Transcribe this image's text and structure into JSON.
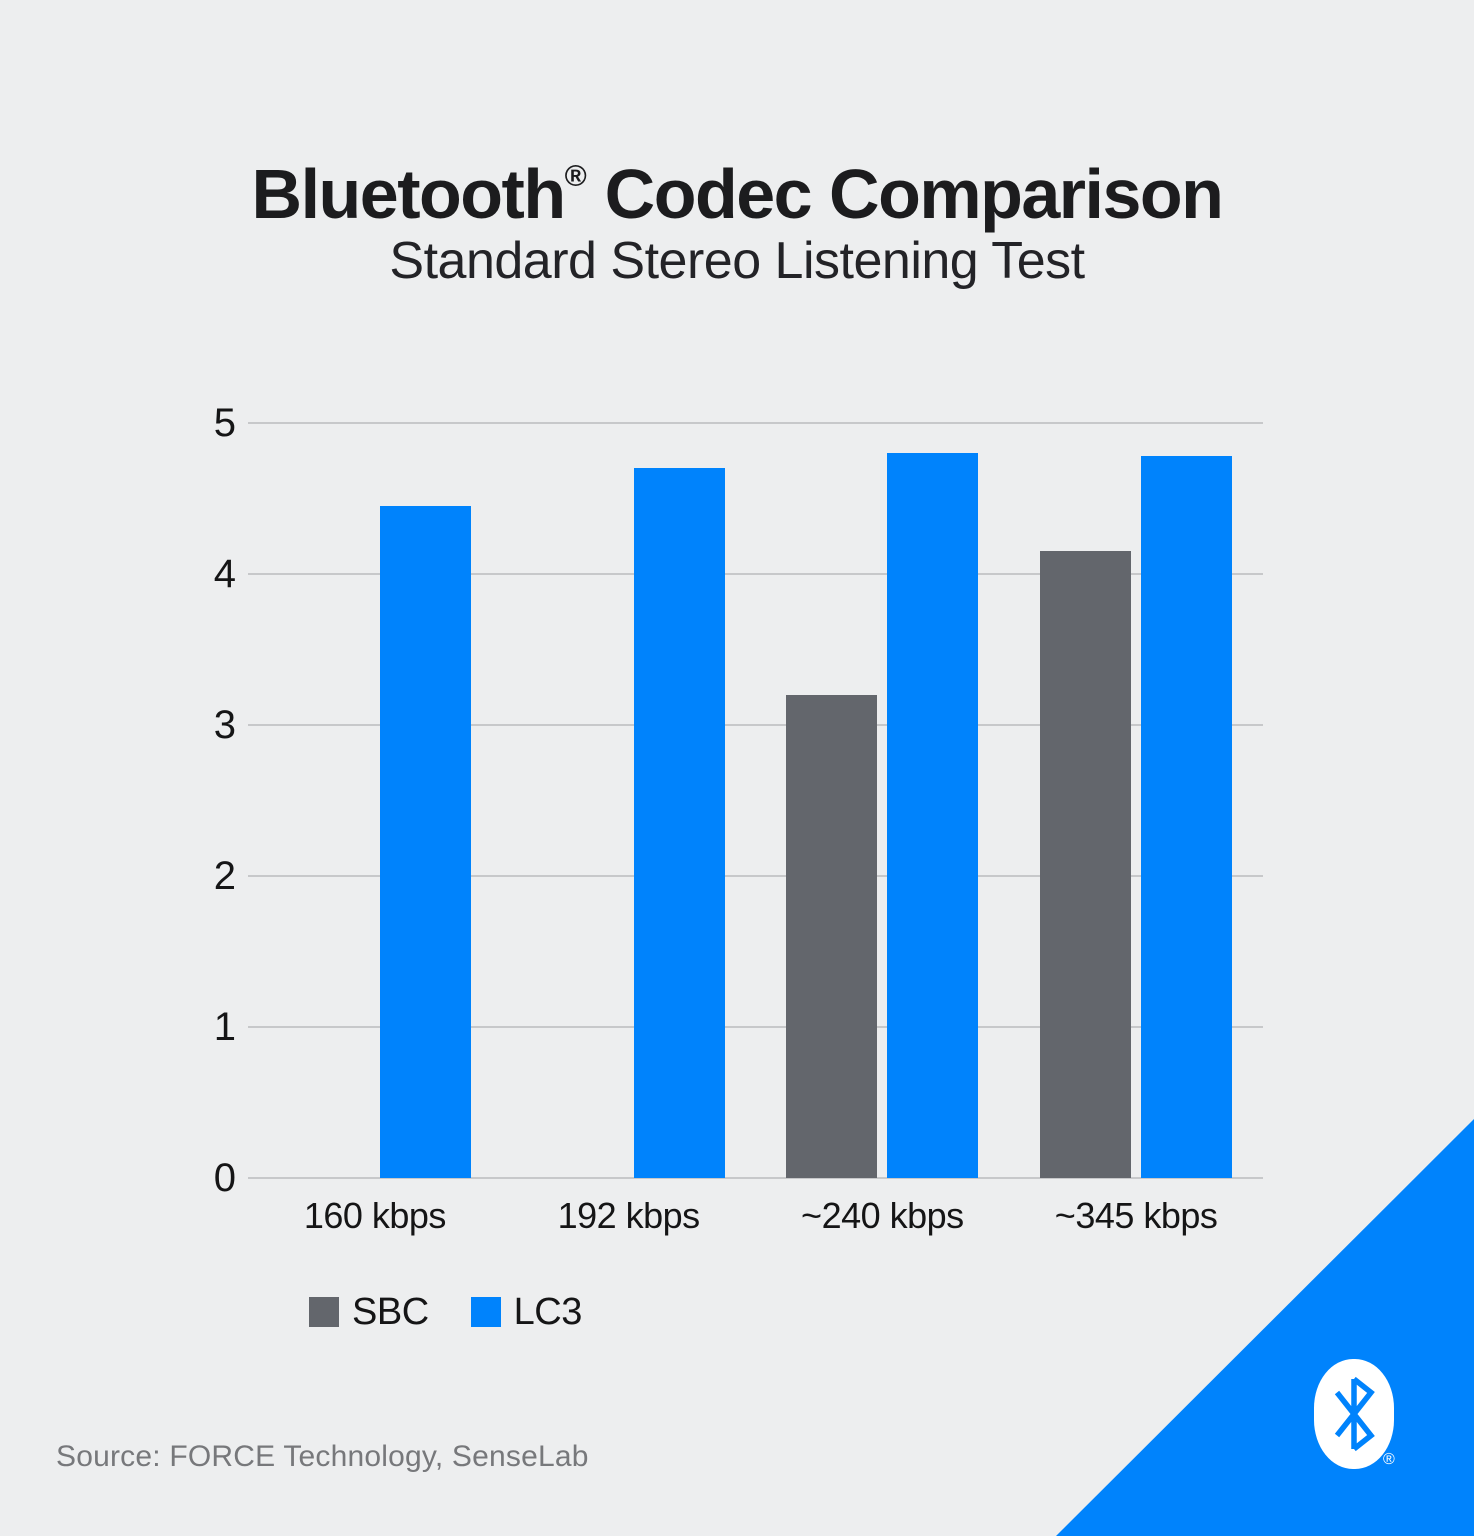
{
  "title": "Bluetooth® Codec Comparison",
  "title_parts": {
    "brand": "Bluetooth",
    "mark": "®",
    "rest": " Codec Comparison"
  },
  "subtitle": "Standard Stereo Listening Test",
  "source": "Source: FORCE Technology, SenseLab",
  "logo": {
    "name": "bluetooth-logo",
    "registered_mark": "®"
  },
  "colors": {
    "background": "#EDEEEF",
    "title_text": "#1C1C1E",
    "axis_text": "#151516",
    "grid": "#C7C8CA",
    "bar_gray": "#63666C",
    "bar_blue": "#0083FC",
    "source_text": "#77787B",
    "triangle": "#0083FC",
    "logo_fill": "#FFFFFF"
  },
  "legend": [
    {
      "label": "SBC",
      "color": "#63666C"
    },
    {
      "label": "LC3",
      "color": "#0083FC"
    }
  ],
  "chart_data": {
    "type": "bar",
    "title": "Bluetooth® Codec Comparison",
    "subtitle": "Standard Stereo Listening Test",
    "categories": [
      "160 kbps",
      "192 kbps",
      "~240 kbps",
      "~345 kbps"
    ],
    "series": [
      {
        "name": "SBC",
        "color": "#63666C",
        "values": [
          null,
          null,
          3.2,
          4.15
        ]
      },
      {
        "name": "LC3",
        "color": "#0083FC",
        "values": [
          4.45,
          4.7,
          4.8,
          4.78
        ]
      }
    ],
    "xlabel": "",
    "ylabel": "",
    "ylim": [
      0,
      5
    ],
    "yticks": [
      0,
      1,
      2,
      3,
      4,
      5
    ],
    "grid": true,
    "legend_position": "bottom-left"
  }
}
